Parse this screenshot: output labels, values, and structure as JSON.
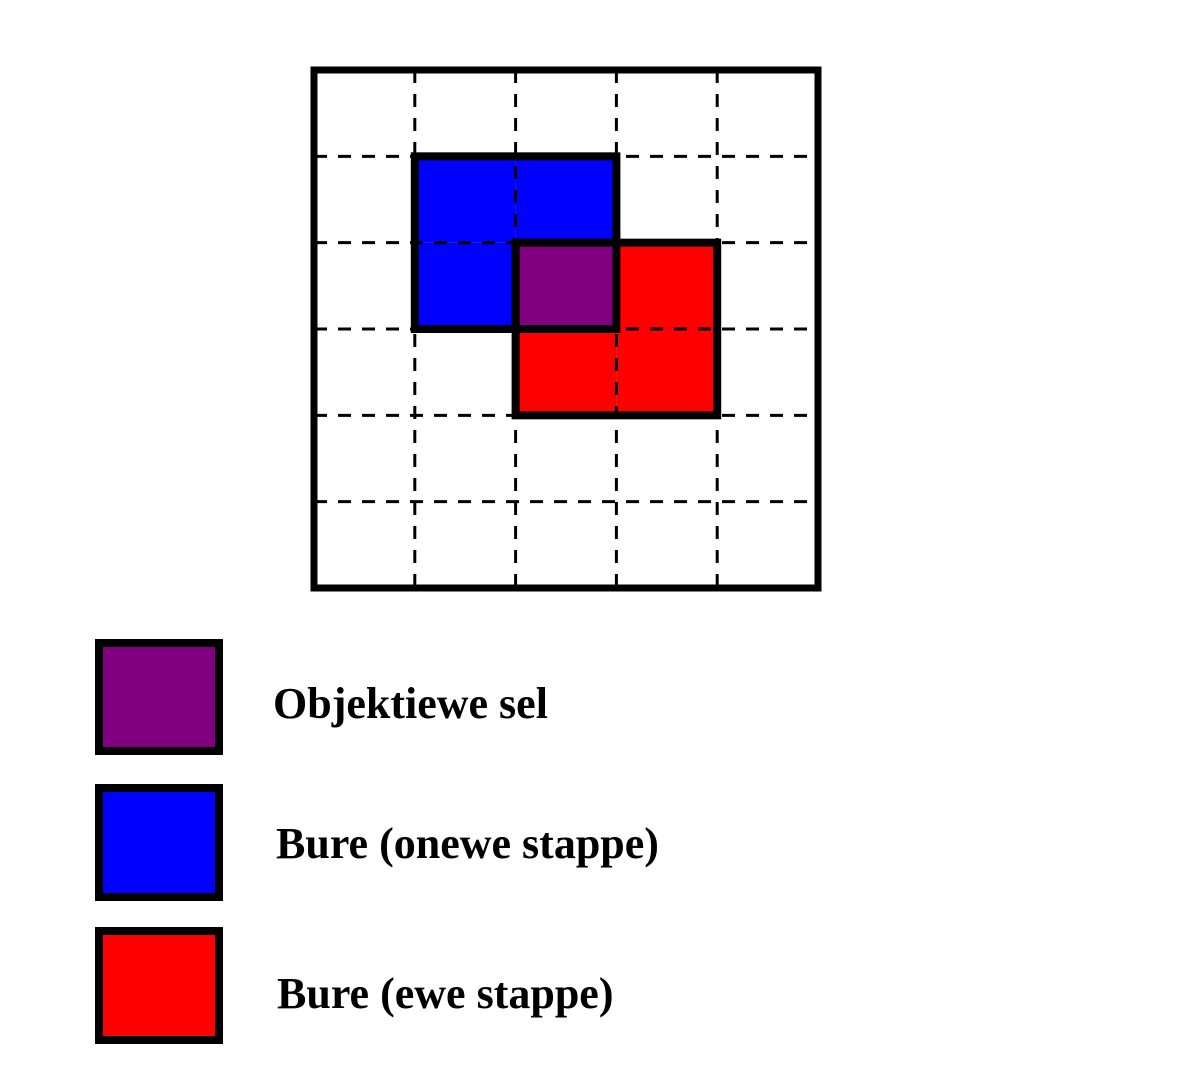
{
  "grid": {
    "rows": 6,
    "cols": 5,
    "frame_color": "#000000",
    "gridline_style": "dashed"
  },
  "cells": {
    "objective": {
      "row": 2,
      "col": 2,
      "color": "#800080"
    },
    "odd_neighbors": [
      {
        "row": 1,
        "col": 1
      },
      {
        "row": 1,
        "col": 2
      },
      {
        "row": 2,
        "col": 1
      }
    ],
    "even_neighbors": [
      {
        "row": 2,
        "col": 3
      },
      {
        "row": 3,
        "col": 2
      },
      {
        "row": 3,
        "col": 3
      }
    ],
    "odd_color": "#0000ff",
    "even_color": "#ff0000"
  },
  "legend": {
    "items": [
      {
        "label": "Objektiewe sel",
        "color": "#800080",
        "icon": "purple-square-icon"
      },
      {
        "label": "Bure (onewe stappe)",
        "color": "#0000ff",
        "icon": "blue-square-icon"
      },
      {
        "label": "Bure (ewe stappe)",
        "color": "#ff0000",
        "icon": "red-square-icon"
      }
    ]
  }
}
